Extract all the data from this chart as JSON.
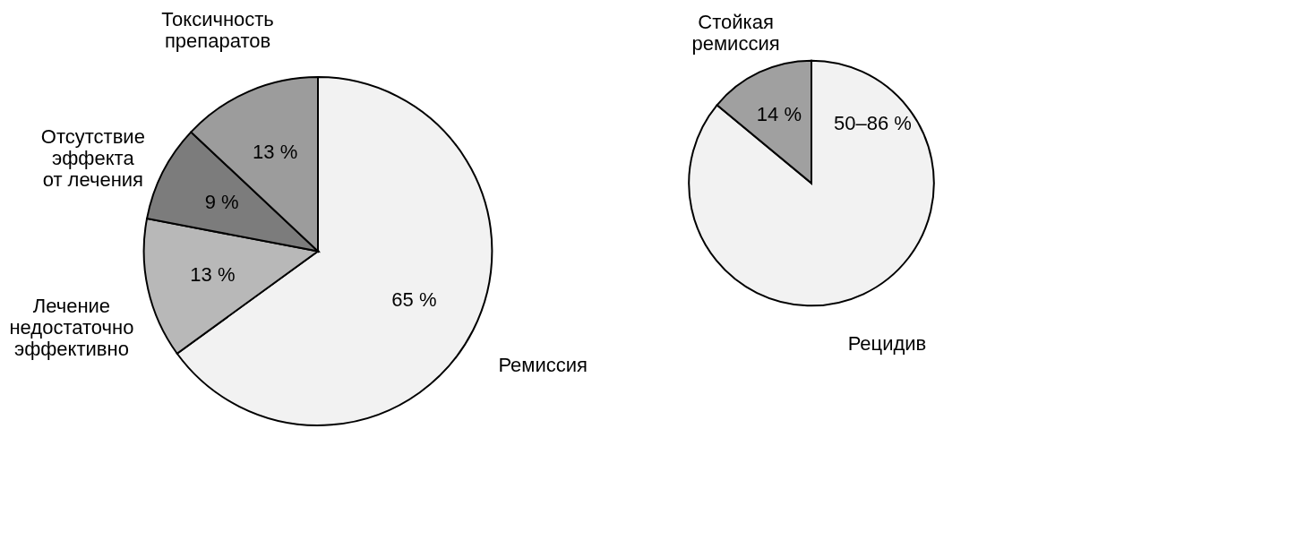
{
  "chart_data": [
    {
      "type": "pie",
      "categories": [
        "Ремиссия",
        "Лечение\nнедостаточно\nэффективно",
        "Отсутствие\nэффекта\nот лечения",
        "Токсичность\nпрепаратов"
      ],
      "values": [
        65,
        13,
        9,
        13
      ],
      "colors": [
        "#f2f2f2",
        "#b8b8b8",
        "#7c7c7c",
        "#9c9c9c"
      ],
      "value_labels": [
        "65 %",
        "13 %",
        "9 %",
        "13 %"
      ]
    },
    {
      "type": "pie",
      "categories": [
        "Рецидив",
        "Стойкая\nремиссия"
      ],
      "values": [
        86,
        14
      ],
      "colors": [
        "#f2f2f2",
        "#a0a0a0"
      ],
      "value_labels": [
        null,
        "14 %"
      ],
      "annotations": [
        "50–86 %"
      ]
    }
  ]
}
